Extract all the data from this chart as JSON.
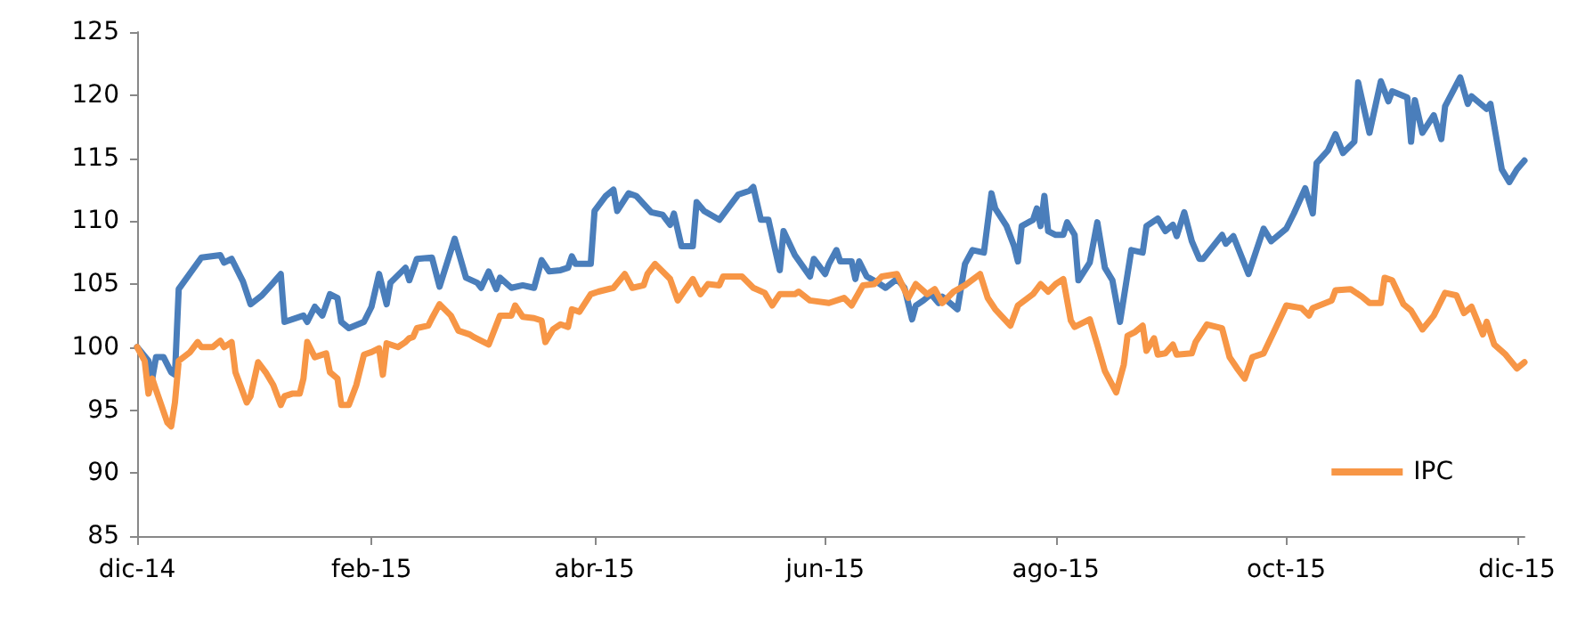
{
  "chart_data": {
    "type": "line",
    "xlim": [
      "2014-12-01",
      "2015-12-03"
    ],
    "xticks": [
      {
        "value": "2014-12-01",
        "label": "dic-14"
      },
      {
        "value": "2015-02-01",
        "label": "feb-15"
      },
      {
        "value": "2015-04-01",
        "label": "abr-15"
      },
      {
        "value": "2015-06-01",
        "label": "jun-15"
      },
      {
        "value": "2015-08-01",
        "label": "ago-15"
      },
      {
        "value": "2015-10-01",
        "label": "oct-15"
      },
      {
        "value": "2015-12-01",
        "label": "dic-15"
      }
    ],
    "ylim": [
      85,
      125
    ],
    "yticks": [
      85,
      90,
      95,
      100,
      105,
      110,
      115,
      120,
      125
    ],
    "grid": false,
    "legend": "bottom right",
    "marker": "none",
    "line_style": "solid",
    "series": [
      {
        "color": "#4a7ebb",
        "x": [
          "2014-12-01",
          "2014-12-04",
          "2014-12-05",
          "2014-12-06",
          "2014-12-08",
          "2014-12-10",
          "2014-12-11",
          "2014-12-12",
          "2014-12-18",
          "2014-12-23",
          "2014-12-24",
          "2014-12-26",
          "2014-12-29",
          "2014-12-31",
          "2015-01-03",
          "2015-01-06",
          "2015-01-08",
          "2015-01-09",
          "2015-01-14",
          "2015-01-15",
          "2015-01-17",
          "2015-01-19",
          "2015-01-21",
          "2015-01-23",
          "2015-01-24",
          "2015-01-26",
          "2015-01-30",
          "2015-02-01",
          "2015-02-03",
          "2015-02-05",
          "2015-02-06",
          "2015-02-10",
          "2015-02-11",
          "2015-02-13",
          "2015-02-17",
          "2015-02-19",
          "2015-02-23",
          "2015-02-26",
          "2015-03-01",
          "2015-03-02",
          "2015-03-04",
          "2015-03-06",
          "2015-03-07",
          "2015-03-10",
          "2015-03-13",
          "2015-03-16",
          "2015-03-18",
          "2015-03-20",
          "2015-03-23",
          "2015-03-25",
          "2015-03-26",
          "2015-03-27",
          "2015-03-31",
          "2015-04-01",
          "2015-04-04",
          "2015-04-06",
          "2015-04-07",
          "2015-04-10",
          "2015-04-12",
          "2015-04-16",
          "2015-04-19",
          "2015-04-21",
          "2015-04-22",
          "2015-04-24",
          "2015-04-27",
          "2015-04-28",
          "2015-04-30",
          "2015-05-04",
          "2015-05-07",
          "2015-05-09",
          "2015-05-12",
          "2015-05-13",
          "2015-05-15",
          "2015-05-17",
          "2015-05-20",
          "2015-05-21",
          "2015-05-24",
          "2015-05-28",
          "2015-05-29",
          "2015-06-01",
          "2015-06-02",
          "2015-06-04",
          "2015-06-05",
          "2015-06-08",
          "2015-06-09",
          "2015-06-10",
          "2015-06-12",
          "2015-06-15",
          "2015-06-17",
          "2015-06-20",
          "2015-06-22",
          "2015-06-24",
          "2015-06-25",
          "2015-06-27",
          "2015-06-29",
          "2015-07-01",
          "2015-07-02",
          "2015-07-06",
          "2015-07-08",
          "2015-07-10",
          "2015-07-13",
          "2015-07-15",
          "2015-07-16",
          "2015-07-19",
          "2015-07-21",
          "2015-07-22",
          "2015-07-23",
          "2015-07-26",
          "2015-07-27",
          "2015-07-28",
          "2015-07-29",
          "2015-07-30",
          "2015-08-01",
          "2015-08-03",
          "2015-08-04",
          "2015-08-06",
          "2015-08-07",
          "2015-08-10",
          "2015-08-12",
          "2015-08-14",
          "2015-08-16",
          "2015-08-18",
          "2015-08-20",
          "2015-08-21",
          "2015-08-24",
          "2015-08-25",
          "2015-08-28",
          "2015-08-30",
          "2015-09-01",
          "2015-09-02",
          "2015-09-04",
          "2015-09-06",
          "2015-09-08",
          "2015-09-09",
          "2015-09-14",
          "2015-09-15",
          "2015-09-17",
          "2015-09-19",
          "2015-09-21",
          "2015-09-25",
          "2015-09-27",
          "2015-10-01",
          "2015-10-03",
          "2015-10-06",
          "2015-10-08",
          "2015-10-09",
          "2015-10-12",
          "2015-10-14",
          "2015-10-16",
          "2015-10-19",
          "2015-10-20",
          "2015-10-23",
          "2015-10-26",
          "2015-10-28",
          "2015-10-29",
          "2015-11-02",
          "2015-11-03",
          "2015-11-04",
          "2015-11-06",
          "2015-11-09",
          "2015-11-11",
          "2015-11-12",
          "2015-11-16",
          "2015-11-18",
          "2015-11-19",
          "2015-11-23",
          "2015-11-24",
          "2015-11-27",
          "2015-11-29",
          "2015-12-01",
          "2015-12-03"
        ],
        "values": [
          100,
          98.9,
          97.5,
          99.2,
          99.2,
          98.0,
          97.8,
          104.6,
          107.1,
          107.3,
          106.7,
          107.0,
          105.2,
          103.4,
          104.1,
          105.1,
          105.8,
          102.0,
          102.5,
          102.0,
          103.2,
          102.5,
          104.2,
          103.9,
          102.0,
          101.5,
          102.0,
          103.2,
          105.8,
          103.4,
          105.1,
          106.3,
          105.3,
          107.0,
          107.1,
          104.8,
          108.6,
          105.5,
          105.1,
          104.7,
          106.0,
          104.6,
          105.5,
          104.7,
          104.9,
          104.7,
          106.9,
          106.0,
          106.1,
          106.3,
          107.2,
          106.6,
          106.6,
          110.8,
          112.0,
          112.5,
          110.8,
          112.2,
          112.0,
          110.7,
          110.5,
          109.7,
          110.6,
          108.0,
          108.0,
          111.5,
          110.8,
          110.1,
          111.3,
          112.1,
          112.4,
          112.7,
          110.1,
          110.1,
          106.1,
          109.2,
          107.3,
          105.6,
          107.0,
          105.8,
          106.6,
          107.7,
          106.8,
          106.8,
          105.4,
          106.8,
          105.6,
          105.1,
          104.7,
          105.4,
          104.7,
          102.2,
          103.3,
          103.7,
          104.2,
          103.5,
          104.0,
          103.0,
          106.6,
          107.7,
          107.5,
          112.2,
          111.0,
          109.6,
          108.0,
          106.8,
          109.6,
          110.1,
          111.0,
          109.6,
          112.0,
          109.2,
          108.9,
          108.9,
          109.9,
          108.9,
          105.3,
          106.7,
          109.9,
          106.3,
          105.3,
          102.0,
          105.8,
          107.7,
          107.5,
          109.6,
          110.2,
          109.2,
          109.7,
          108.8,
          110.7,
          108.4,
          107.0,
          107.0,
          108.9,
          108.2,
          108.8,
          107.3,
          105.8,
          109.4,
          108.4,
          109.4,
          110.6,
          112.6,
          110.6,
          114.6,
          115.6,
          116.9,
          115.4,
          116.3,
          121.0,
          117.0,
          121.1,
          119.5,
          120.3,
          119.8,
          116.3,
          119.6,
          117.0,
          118.4,
          116.5,
          119.1,
          121.4,
          119.3,
          119.9,
          118.9,
          119.3,
          114.1,
          113.1,
          114.1,
          114.8
        ]
      },
      {
        "name": "IPC",
        "color": "#f79646",
        "x": [
          "2014-12-01",
          "2014-12-03",
          "2014-12-04",
          "2014-12-05",
          "2014-12-06",
          "2014-12-09",
          "2014-12-10",
          "2014-12-11",
          "2014-12-12",
          "2014-12-15",
          "2014-12-17",
          "2014-12-18",
          "2014-12-21",
          "2014-12-23",
          "2014-12-24",
          "2014-12-26",
          "2014-12-27",
          "2014-12-30",
          "2014-12-31",
          "2015-01-02",
          "2015-01-04",
          "2015-01-06",
          "2015-01-08",
          "2015-01-09",
          "2015-01-11",
          "2015-01-13",
          "2015-01-14",
          "2015-01-15",
          "2015-01-17",
          "2015-01-20",
          "2015-01-21",
          "2015-01-23",
          "2015-01-24",
          "2015-01-26",
          "2015-01-28",
          "2015-01-30",
          "2015-02-01",
          "2015-02-03",
          "2015-02-04",
          "2015-02-05",
          "2015-02-08",
          "2015-02-10",
          "2015-02-11",
          "2015-02-12",
          "2015-02-13",
          "2015-02-16",
          "2015-02-17",
          "2015-02-19",
          "2015-02-22",
          "2015-02-24",
          "2015-02-27",
          "2015-02-28",
          "2015-03-04",
          "2015-03-07",
          "2015-03-10",
          "2015-03-11",
          "2015-03-13",
          "2015-03-16",
          "2015-03-18",
          "2015-03-19",
          "2015-03-21",
          "2015-03-23",
          "2015-03-25",
          "2015-03-26",
          "2015-03-28",
          "2015-03-31",
          "2015-04-02",
          "2015-04-06",
          "2015-04-09",
          "2015-04-11",
          "2015-04-14",
          "2015-04-15",
          "2015-04-17",
          "2015-04-21",
          "2015-04-23",
          "2015-04-27",
          "2015-04-29",
          "2015-05-01",
          "2015-05-04",
          "2015-05-05",
          "2015-05-10",
          "2015-05-13",
          "2015-05-16",
          "2015-05-18",
          "2015-05-20",
          "2015-05-24",
          "2015-05-25",
          "2015-05-28",
          "2015-06-02",
          "2015-06-06",
          "2015-06-08",
          "2015-06-11",
          "2015-06-14",
          "2015-06-16",
          "2015-06-20",
          "2015-06-23",
          "2015-06-25",
          "2015-06-28",
          "2015-06-30",
          "2015-07-02",
          "2015-07-05",
          "2015-07-08",
          "2015-07-12",
          "2015-07-14",
          "2015-07-16",
          "2015-07-20",
          "2015-07-22",
          "2015-07-26",
          "2015-07-28",
          "2015-07-30",
          "2015-08-01",
          "2015-08-03",
          "2015-08-05",
          "2015-08-06",
          "2015-08-10",
          "2015-08-12",
          "2015-08-14",
          "2015-08-17",
          "2015-08-19",
          "2015-08-20",
          "2015-08-22",
          "2015-08-24",
          "2015-08-25",
          "2015-08-27",
          "2015-08-28",
          "2015-08-30",
          "2015-09-01",
          "2015-09-02",
          "2015-09-06",
          "2015-09-07",
          "2015-09-10",
          "2015-09-14",
          "2015-09-16",
          "2015-09-18",
          "2015-09-20",
          "2015-09-22",
          "2015-09-25",
          "2015-09-28",
          "2015-10-01",
          "2015-10-05",
          "2015-10-07",
          "2015-10-08",
          "2015-10-13",
          "2015-10-14",
          "2015-10-18",
          "2015-10-21",
          "2015-10-23",
          "2015-10-26",
          "2015-10-27",
          "2015-10-29",
          "2015-11-01",
          "2015-11-03",
          "2015-11-06",
          "2015-11-09",
          "2015-11-12",
          "2015-11-15",
          "2015-11-17",
          "2015-11-19",
          "2015-11-22",
          "2015-11-23",
          "2015-11-25",
          "2015-11-28",
          "2015-12-01",
          "2015-12-03"
        ],
        "values": [
          100,
          98.9,
          96.3,
          97.5,
          96.6,
          94.0,
          93.7,
          95.6,
          98.9,
          99.6,
          100.4,
          100,
          100,
          100.5,
          100,
          100.4,
          98.0,
          95.6,
          96.1,
          98.8,
          98.0,
          97.0,
          95.4,
          96.1,
          96.3,
          96.3,
          97.5,
          100.4,
          99.2,
          99.5,
          98.0,
          97.5,
          95.4,
          95.4,
          97.0,
          99.4,
          99.6,
          99.9,
          97.8,
          100.3,
          100,
          100.4,
          100.7,
          100.8,
          101.5,
          101.7,
          102.3,
          103.4,
          102.5,
          101.3,
          101.0,
          100.8,
          100.2,
          102.5,
          102.5,
          103.3,
          102.4,
          102.3,
          102.1,
          100.4,
          101.4,
          101.8,
          101.6,
          103.0,
          102.8,
          104.2,
          104.4,
          104.7,
          105.8,
          104.7,
          104.9,
          105.8,
          106.6,
          105.4,
          103.7,
          105.4,
          104.2,
          105.0,
          104.9,
          105.6,
          105.6,
          104.7,
          104.3,
          103.3,
          104.2,
          104.2,
          104.4,
          103.7,
          103.5,
          103.9,
          103.3,
          104.9,
          105.0,
          105.6,
          105.8,
          103.9,
          105.0,
          104.2,
          104.6,
          103.5,
          104.4,
          104.9,
          105.8,
          103.9,
          103.0,
          101.7,
          103.3,
          104.2,
          105.0,
          104.4,
          105.0,
          105.4,
          102.1,
          101.6,
          102.2,
          100.2,
          98.1,
          96.4,
          98.6,
          100.9,
          101.2,
          101.7,
          99.7,
          100.7,
          99.4,
          99.5,
          100.2,
          99.4,
          99.5,
          100.4,
          101.8,
          101.5,
          99.2,
          98.3,
          97.5,
          99.2,
          99.5,
          101.4,
          103.3,
          103.1,
          102.5,
          103.1,
          103.7,
          104.5,
          104.6,
          104.0,
          103.5,
          103.5,
          105.5,
          105.3,
          103.4,
          102.9,
          101.4,
          102.5,
          104.3,
          104.1,
          102.7,
          103.2,
          101.0,
          102.0,
          100.2,
          99.4,
          98.3,
          98.8
        ]
      }
    ]
  }
}
